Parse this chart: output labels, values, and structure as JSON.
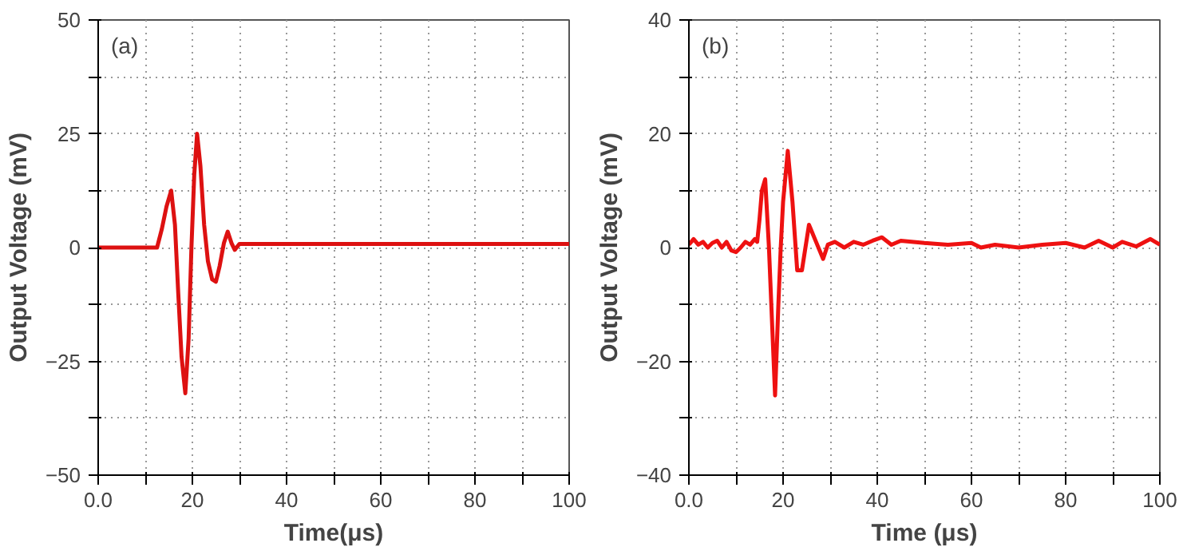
{
  "chart_data": [
    {
      "type": "line",
      "xlabel": "Time(μs)",
      "ylabel": "Output Voltage (mV)",
      "annotations": [
        "(a)"
      ],
      "xlim": [
        0,
        100
      ],
      "ylim": [
        -50,
        50
      ],
      "xticks": [
        {
          "value": 0,
          "label": "0.0"
        },
        {
          "value": 10,
          "label": null
        },
        20,
        {
          "value": 30,
          "label": null
        },
        40,
        {
          "value": 50,
          "label": null
        },
        60,
        {
          "value": 70,
          "label": null
        },
        80,
        {
          "value": 90,
          "label": null
        },
        100
      ],
      "yticks": [
        {
          "value": -50,
          "label": "−50"
        },
        {
          "value": -37.5,
          "label": null
        },
        {
          "value": -25,
          "label": "−25"
        },
        {
          "value": -12.5,
          "label": null
        },
        0,
        {
          "value": 12.5,
          "label": null
        },
        25,
        {
          "value": 37.5,
          "label": null
        },
        50
      ],
      "grid": true,
      "line_style": "solid",
      "series": [
        {
          "color": "#dd1111",
          "x": [
            0,
            12.5,
            13.5,
            14.5,
            15.5,
            16.3,
            17,
            17.7,
            18.5,
            19.2,
            19.8,
            20.4,
            21,
            21.7,
            22.5,
            23.3,
            24.2,
            25,
            25.8,
            26.7,
            27.5,
            28.3,
            29,
            29.6,
            30,
            40,
            60,
            80,
            100
          ],
          "values": [
            0,
            0,
            4,
            9,
            12.5,
            5,
            -10,
            -24,
            -32,
            -20,
            0,
            16,
            25,
            18,
            5,
            -3,
            -7,
            -7.5,
            -4,
            1,
            3.5,
            1,
            -0.5,
            0.3,
            0.8,
            0.8,
            0.8,
            0.8,
            0.8
          ]
        }
      ]
    },
    {
      "type": "line",
      "xlabel": "Time (μs)",
      "ylabel": "Output Voltage (mV)",
      "annotations": [
        "(b)"
      ],
      "xlim": [
        0,
        100
      ],
      "ylim": [
        -40,
        40
      ],
      "xticks": [
        {
          "value": 0,
          "label": "0.0"
        },
        {
          "value": 10,
          "label": null
        },
        20,
        {
          "value": 30,
          "label": null
        },
        40,
        {
          "value": 50,
          "label": null
        },
        60,
        {
          "value": 70,
          "label": null
        },
        80,
        {
          "value": 90,
          "label": null
        },
        100
      ],
      "yticks": [
        {
          "value": -40,
          "label": "−40"
        },
        {
          "value": -30,
          "label": null
        },
        {
          "value": -20,
          "label": "−20"
        },
        {
          "value": -10,
          "label": null
        },
        0,
        {
          "value": 10,
          "label": null
        },
        20,
        {
          "value": 30,
          "label": null
        },
        40
      ],
      "grid": true,
      "line_style": "solid",
      "series": [
        {
          "color": "#ee1111",
          "x": [
            0,
            1,
            2,
            3,
            4,
            5,
            6,
            7,
            8,
            9,
            10,
            11,
            12,
            13,
            14,
            14.5,
            15,
            15.5,
            16.2,
            17,
            17.7,
            18.3,
            19,
            19.5,
            20,
            21,
            22,
            23,
            24,
            25.5,
            27,
            28.5,
            29.5,
            31,
            33,
            35,
            37,
            39,
            41,
            43,
            45,
            50,
            55,
            60,
            62,
            65,
            70,
            75,
            80,
            84,
            87,
            90,
            92,
            95,
            98,
            100
          ],
          "values": [
            0.5,
            1.5,
            0.5,
            1,
            0,
            0.8,
            1.2,
            0,
            1,
            -0.5,
            -0.8,
            0,
            1,
            0.5,
            1.5,
            1,
            5,
            10,
            12,
            0,
            -14,
            -26,
            -10,
            0,
            8,
            17,
            8,
            -4,
            -4,
            4,
            1,
            -2,
            0.5,
            1,
            0,
            1,
            0.5,
            1.2,
            1.8,
            0.5,
            1.2,
            0.8,
            0.5,
            0.8,
            0,
            0.5,
            0,
            0.5,
            0.8,
            0,
            1.2,
            0,
            1,
            0.2,
            1.5,
            0.5
          ]
        }
      ]
    }
  ]
}
